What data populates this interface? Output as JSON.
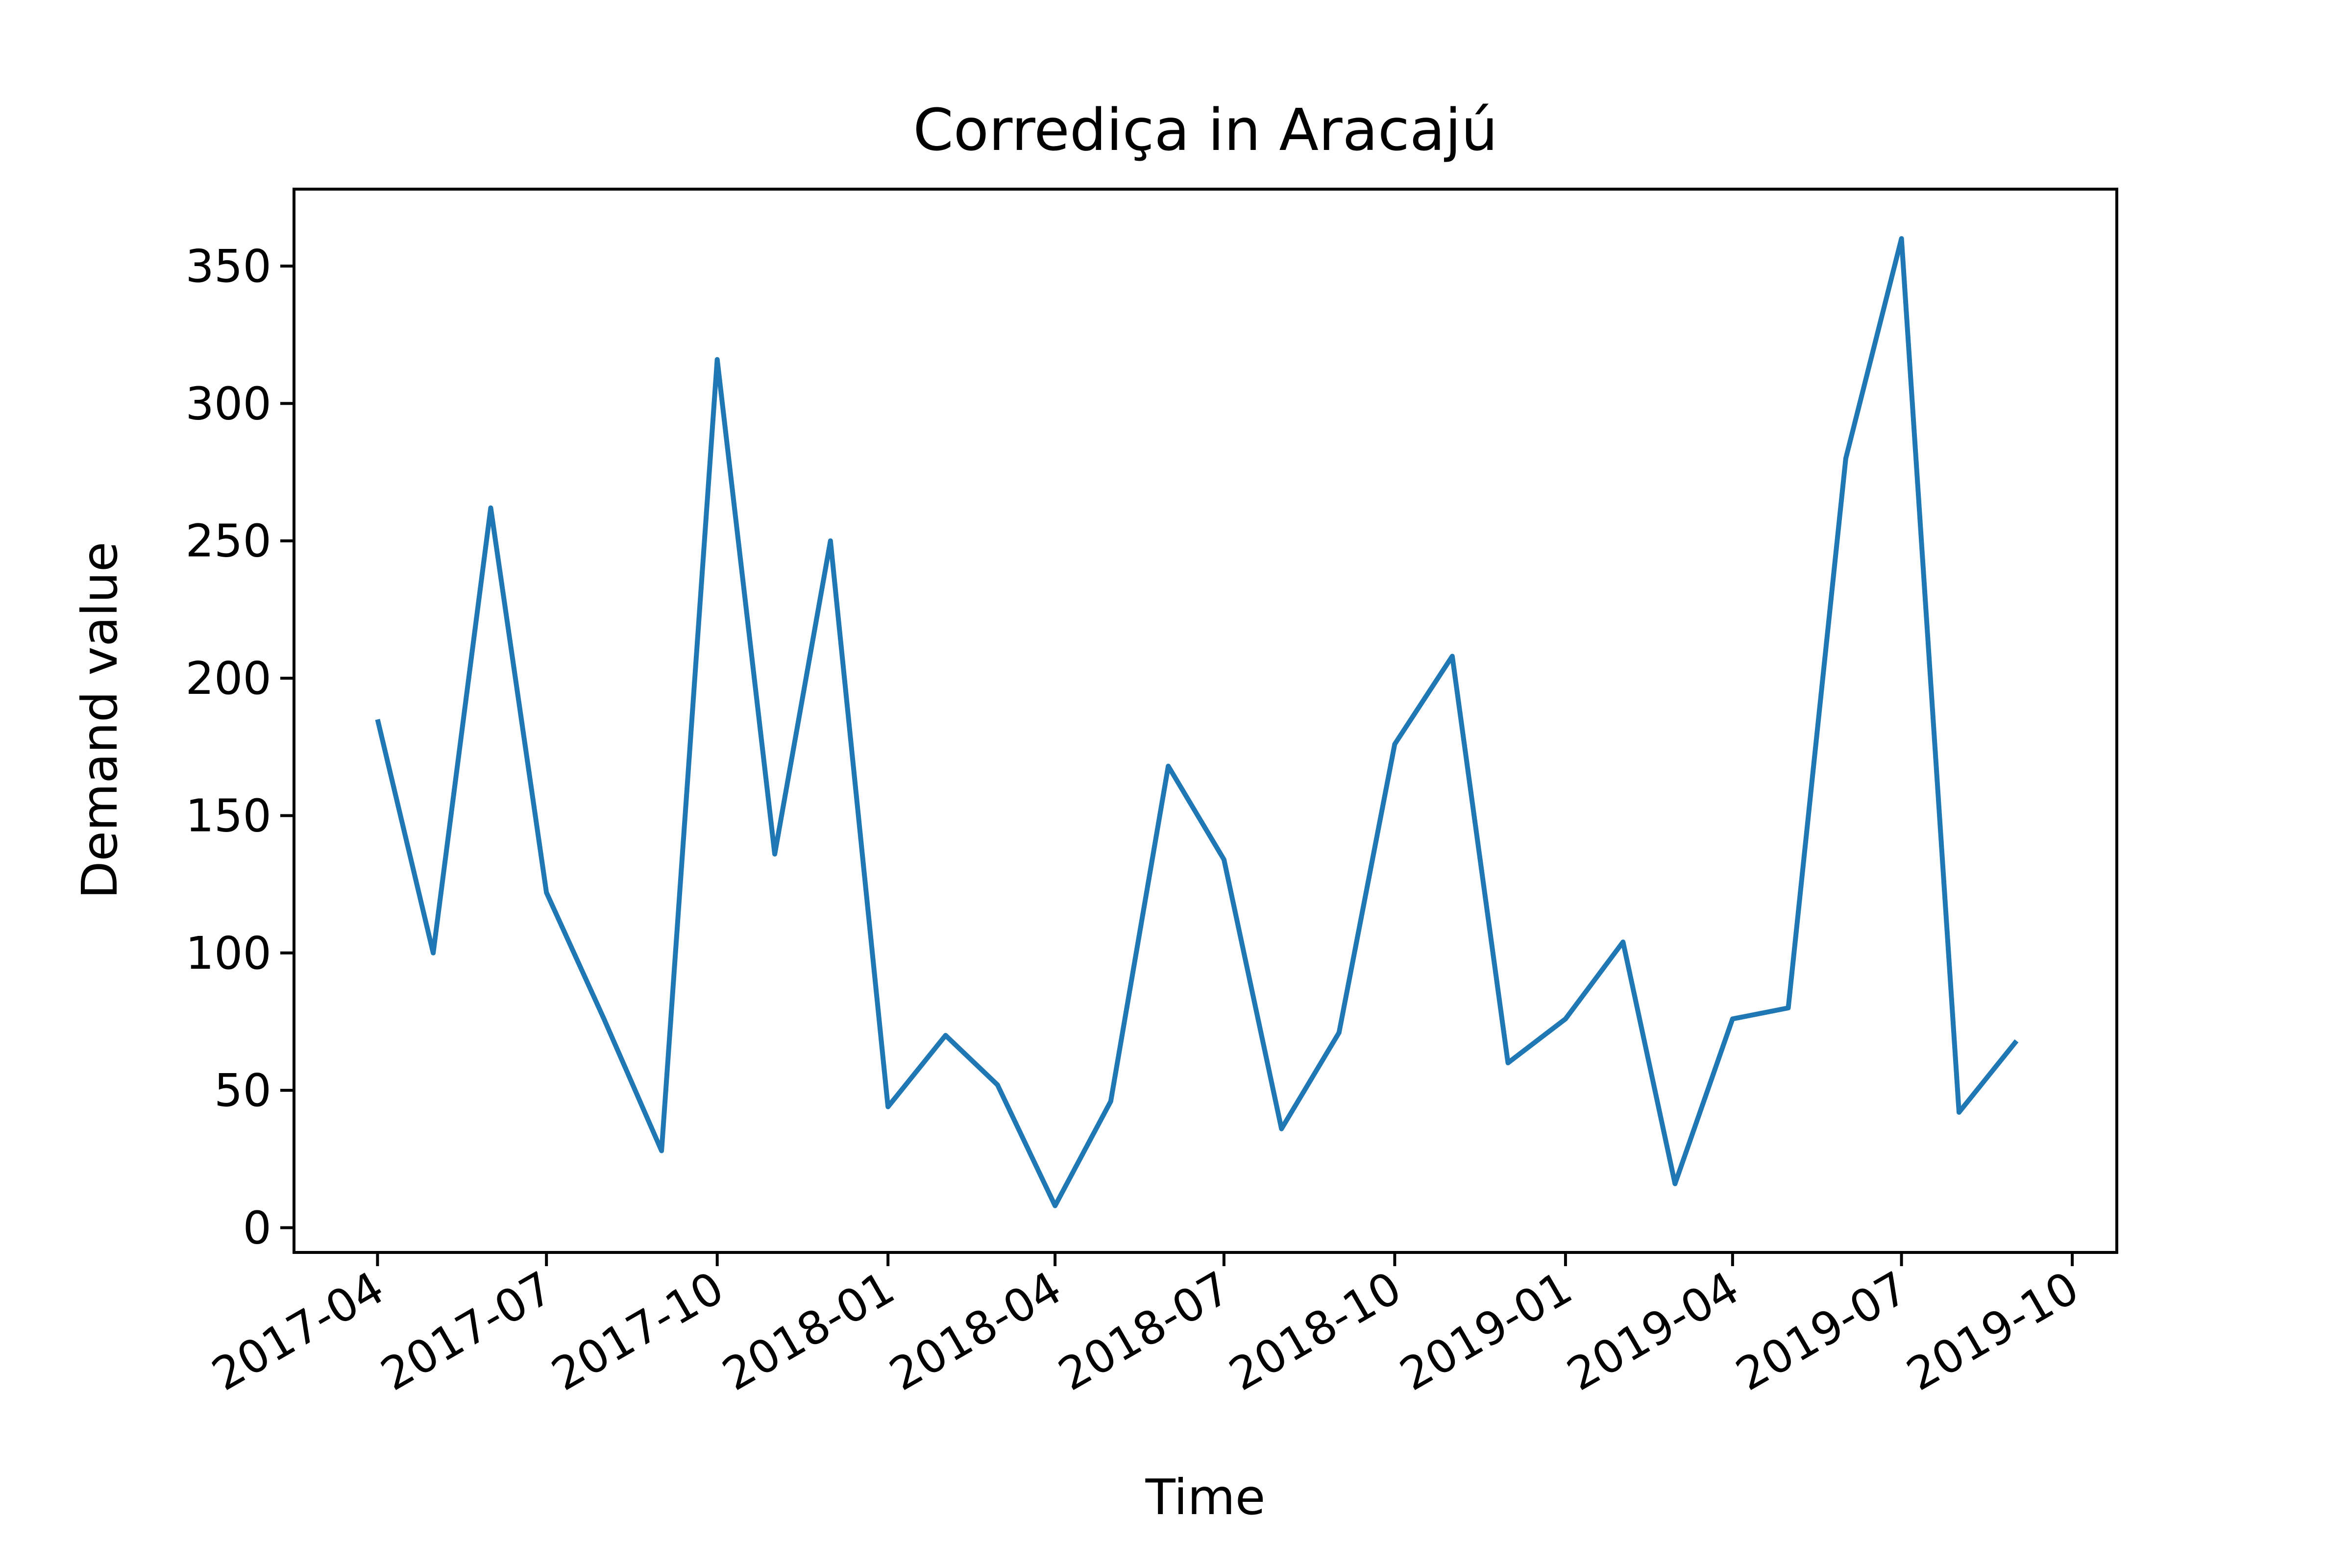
{
  "chart_data": {
    "type": "line",
    "title": "Corrediça in Aracajú",
    "xlabel": "Time",
    "ylabel": "Demand value",
    "x_ticks": [
      "2017-04",
      "2017-07",
      "2017-10",
      "2018-01",
      "2018-04",
      "2018-07",
      "2018-10",
      "2019-01",
      "2019-04",
      "2019-07",
      "2019-10"
    ],
    "y_ticks": [
      "0",
      "50",
      "100",
      "150",
      "200",
      "250",
      "300",
      "350"
    ],
    "xlim": [
      "2017-02-15",
      "2019-10-25"
    ],
    "ylim": [
      -9,
      378
    ],
    "grid": false,
    "legend": "none",
    "series": [
      {
        "color": "#1f77b4",
        "x": [
          "2017-04-01",
          "2017-05-01",
          "2017-06-01",
          "2017-07-01",
          "2017-08-01",
          "2017-09-01",
          "2017-10-01",
          "2017-11-01",
          "2017-12-01",
          "2018-01-01",
          "2018-02-01",
          "2018-03-01",
          "2018-04-01",
          "2018-05-01",
          "2018-06-01",
          "2018-07-01",
          "2018-08-01",
          "2018-09-01",
          "2018-10-01",
          "2018-11-01",
          "2018-12-01",
          "2019-01-01",
          "2019-02-01",
          "2019-03-01",
          "2019-04-01",
          "2019-05-01",
          "2019-06-01",
          "2019-07-01",
          "2019-08-01",
          "2019-09-01"
        ],
        "values": [
          185,
          100,
          262,
          122,
          76,
          28,
          316,
          136,
          250,
          44,
          70,
          52,
          8,
          46,
          168,
          134,
          36,
          71,
          176,
          208,
          60,
          76,
          104,
          16,
          76,
          80,
          280,
          360,
          42,
          68
        ]
      }
    ]
  }
}
